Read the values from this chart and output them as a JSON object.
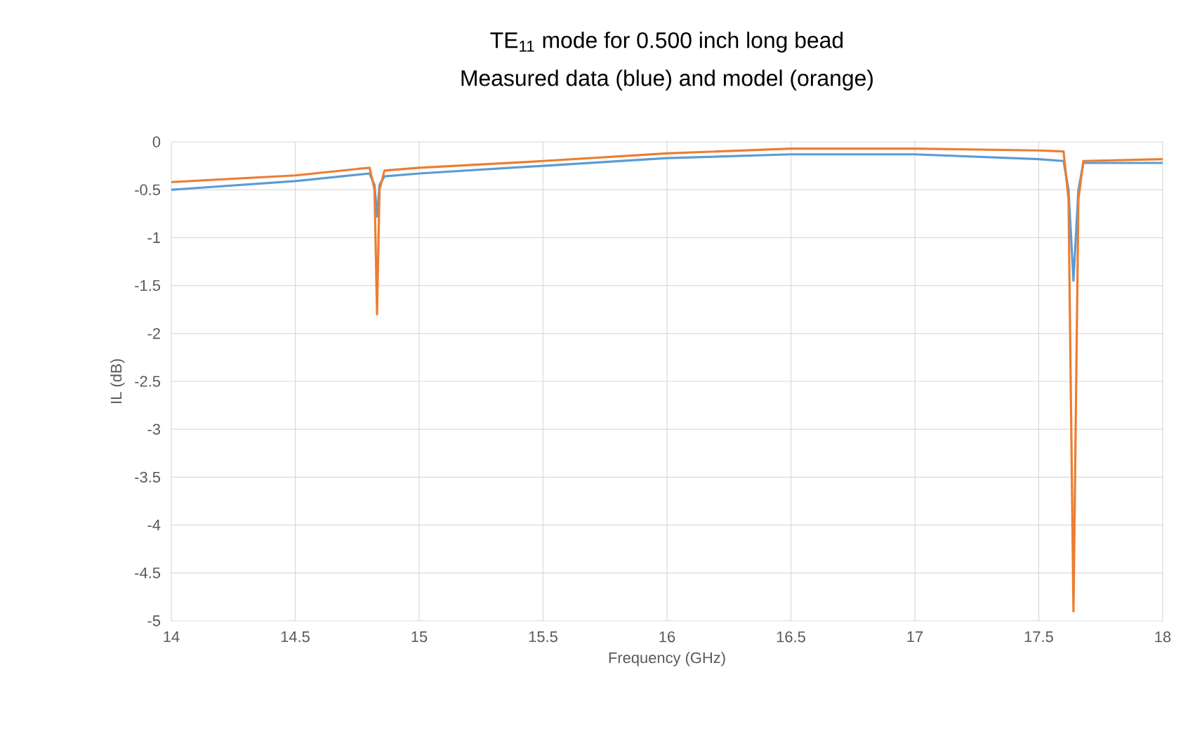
{
  "chart_data": {
    "type": "line",
    "title": "TE$_{11}$ mode for 0.500 inch long bead",
    "subtitle": "Measured data (blue) and model (orange)",
    "xlabel": "Frequency (GHz)",
    "ylabel": "IL (dB)",
    "xlim": [
      14,
      18
    ],
    "xticks": [
      14,
      14.5,
      15,
      15.5,
      16,
      16.5,
      17,
      17.5,
      18
    ],
    "ylim": [
      -5,
      0
    ],
    "yticks": [
      -5,
      -4.5,
      -4,
      -3.5,
      -3,
      -2.5,
      -2,
      -1.5,
      -1,
      -0.5,
      0
    ],
    "grid": true,
    "marker": "none",
    "line_style": "solid",
    "series": [
      {
        "color": "#5b9bd5",
        "x": [
          14,
          14.5,
          14.8,
          14.82,
          14.83,
          14.84,
          14.86,
          15,
          15.5,
          16,
          16.5,
          17,
          17.5,
          17.6,
          17.62,
          17.64,
          17.66,
          17.68,
          18
        ],
        "values": [
          -0.5,
          -0.41,
          -0.33,
          -0.45,
          -0.78,
          -0.45,
          -0.36,
          -0.33,
          -0.25,
          -0.17,
          -0.13,
          -0.13,
          -0.18,
          -0.2,
          -0.5,
          -1.45,
          -0.5,
          -0.22,
          -0.22
        ]
      },
      {
        "color": "#ed7d31",
        "x": [
          14,
          14.5,
          14.8,
          14.82,
          14.83,
          14.84,
          14.86,
          15,
          15.5,
          16,
          16.5,
          17,
          17.5,
          17.6,
          17.62,
          17.64,
          17.66,
          17.68,
          18
        ],
        "values": [
          -0.42,
          -0.35,
          -0.27,
          -0.5,
          -1.8,
          -0.5,
          -0.3,
          -0.27,
          -0.2,
          -0.12,
          -0.07,
          -0.07,
          -0.09,
          -0.1,
          -0.6,
          -4.9,
          -0.6,
          -0.2,
          -0.18
        ]
      }
    ]
  }
}
